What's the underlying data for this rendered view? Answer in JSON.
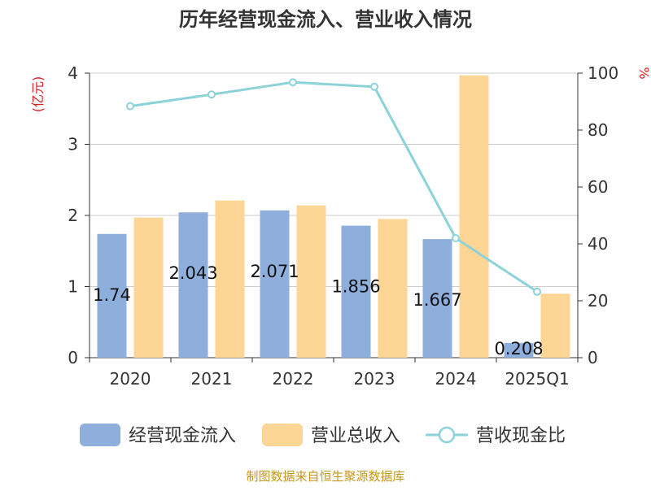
{
  "chart_data": {
    "type": "bar",
    "title": "历年经营现金流入、营业收入情况",
    "left_axis_unit": "(亿元)",
    "right_axis_unit": "%",
    "categories": [
      "2020",
      "2021",
      "2022",
      "2023",
      "2024",
      "2025Q1"
    ],
    "ylim_left": [
      0,
      4
    ],
    "yticks_left": [
      0,
      1,
      2,
      3,
      4
    ],
    "ylim_right": [
      0,
      100
    ],
    "yticks_right": [
      0,
      20,
      40,
      60,
      80,
      100
    ],
    "grid": true,
    "legend_position": "bottom",
    "series": [
      {
        "name": "经营现金流入",
        "type": "bar",
        "axis": "left",
        "color": "#8eafdc",
        "values": [
          1.74,
          2.043,
          2.071,
          1.856,
          1.667,
          0.208
        ],
        "labels": [
          "1.74",
          "2.043",
          "2.071",
          "1.856",
          "1.667",
          "0.208"
        ]
      },
      {
        "name": "营业总收入",
        "type": "bar",
        "axis": "left",
        "color": "#fdd696",
        "values": [
          1.97,
          2.21,
          2.14,
          1.95,
          3.97,
          0.9
        ]
      },
      {
        "name": "营收现金比",
        "type": "line",
        "axis": "right",
        "color": "#8bd3d8",
        "values": [
          88.4,
          92.5,
          96.8,
          95.2,
          42.0,
          23.2
        ]
      }
    ]
  },
  "footer": {
    "source": "制图数据来自恒生聚源数据库"
  }
}
